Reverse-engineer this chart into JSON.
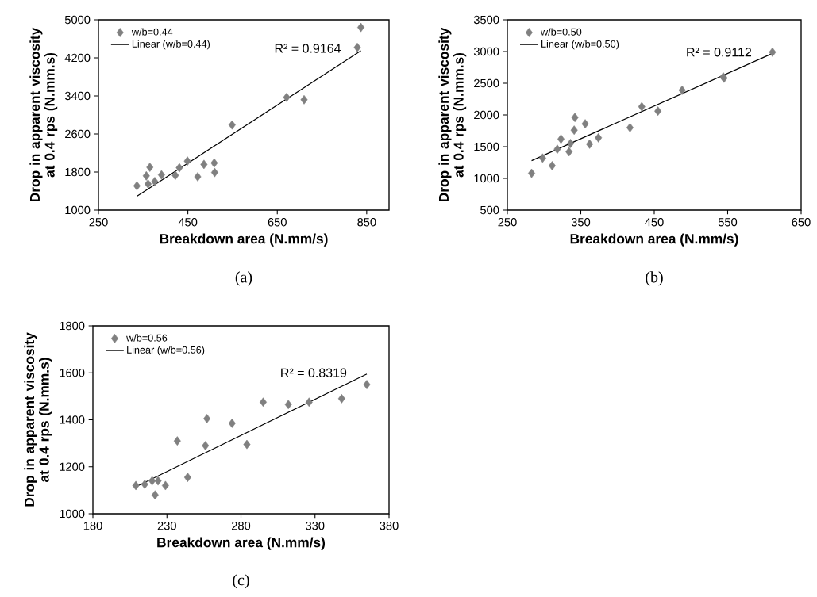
{
  "chart_data": [
    {
      "type": "scatter",
      "xlabel": "Breakdown area (N.mm/s)",
      "ylabel": "Drop in apparent viscosity at 0.4 rps (N.mm.s)",
      "xlim": [
        250,
        900
      ],
      "xticks": [
        250,
        450,
        650,
        850
      ],
      "ylim": [
        1000,
        5000
      ],
      "yticks": [
        1000,
        1800,
        2600,
        3400,
        4200,
        5000
      ],
      "grid": false,
      "legend": "top left",
      "line_style": "solid",
      "annotations": [
        "R² = 0.9164",
        "(a)"
      ],
      "series": [
        {
          "name": "w/b=0.44",
          "marker": "diamond",
          "color": "#808080",
          "x": [
            336,
            365,
            357,
            361,
            376,
            391,
            422,
            431,
            449,
            472,
            486,
            509,
            510,
            549,
            671,
            710,
            829,
            837
          ],
          "values": [
            1510,
            1900,
            1720,
            1550,
            1600,
            1740,
            1730,
            1890,
            2030,
            1700,
            1960,
            1990,
            1790,
            2790,
            3370,
            3320,
            4420,
            4840
          ]
        },
        {
          "name": "Linear (w/b=0.44)",
          "type": "line",
          "marker": "none",
          "color": "#000000",
          "x": [
            336,
            837
          ],
          "values": [
            1290,
            4350
          ]
        }
      ]
    },
    {
      "type": "scatter",
      "xlabel": "Breakdown area (N.mm/s)",
      "ylabel": "Drop in apparent viscosity at 0.4 rps (N.mm.s)",
      "xlim": [
        250,
        650
      ],
      "xticks": [
        250,
        350,
        450,
        550,
        650
      ],
      "ylim": [
        500,
        3500
      ],
      "yticks": [
        500,
        1000,
        1500,
        2000,
        2500,
        3000,
        3500
      ],
      "grid": false,
      "legend": "top left",
      "line_style": "solid",
      "annotations": [
        "R² = 0.9112",
        "(b)"
      ],
      "series": [
        {
          "name": "w/b=0.50",
          "marker": "diamond",
          "color": "#808080",
          "x": [
            283,
            298,
            311,
            318,
            323,
            334,
            336,
            341,
            342,
            356,
            362,
            374,
            417,
            433,
            455,
            488,
            544,
            545,
            611
          ],
          "values": [
            1080,
            1320,
            1200,
            1460,
            1620,
            1420,
            1550,
            1760,
            1960,
            1860,
            1540,
            1640,
            1800,
            2130,
            2060,
            2390,
            2600,
            2580,
            2990
          ]
        },
        {
          "name": "Linear (w/b=0.50)",
          "type": "line",
          "marker": "none",
          "color": "#000000",
          "x": [
            283,
            611
          ],
          "values": [
            1280,
            2970
          ]
        }
      ]
    },
    {
      "type": "scatter",
      "xlabel": "Breakdown area (N.mm/s)",
      "ylabel": "Drop in apparent viscosity at 0.4 rps (N.mm.s)",
      "xlim": [
        180,
        380
      ],
      "xticks": [
        180,
        230,
        280,
        330,
        380
      ],
      "ylim": [
        1000,
        1800
      ],
      "yticks": [
        1000,
        1200,
        1400,
        1600,
        1800
      ],
      "grid": false,
      "legend": "top left",
      "line_style": "solid",
      "annotations": [
        "R² = 0.8319",
        "(c)"
      ],
      "series": [
        {
          "name": "w/b=0.56",
          "marker": "diamond",
          "color": "#808080",
          "x": [
            209,
            215,
            220,
            224,
            222,
            229,
            237,
            244,
            256,
            257,
            274,
            284,
            295,
            312,
            326,
            348,
            365
          ],
          "values": [
            1120,
            1125,
            1140,
            1140,
            1080,
            1120,
            1310,
            1155,
            1290,
            1405,
            1385,
            1295,
            1475,
            1465,
            1475,
            1490,
            1550
          ]
        },
        {
          "name": "Linear (w/b=0.56)",
          "type": "line",
          "marker": "none",
          "color": "#000000",
          "x": [
            209,
            365
          ],
          "values": [
            1115,
            1595
          ]
        }
      ]
    }
  ]
}
